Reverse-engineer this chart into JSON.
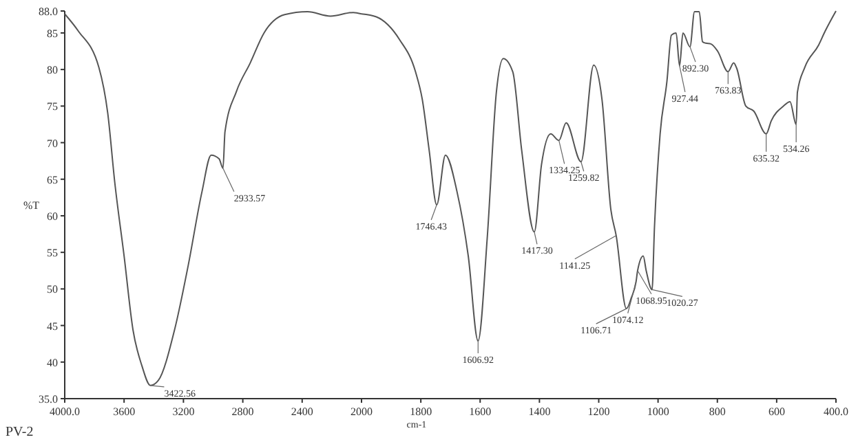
{
  "chart_data": [
    {
      "type": "line",
      "ylabel": "%T",
      "xlim": [
        4000,
        2000
      ],
      "ylim": [
        35,
        88
      ],
      "tick_labels": "xy",
      "xticks": [
        {
          "value": 4000,
          "label": "4000.0"
        },
        3600,
        3200,
        2800,
        2400
      ],
      "yticks": [
        {
          "value": 35,
          "label": "35.0"
        },
        40,
        45,
        50,
        55,
        60,
        65,
        70,
        75,
        80,
        85,
        {
          "value": 88,
          "label": "88.0"
        }
      ],
      "marker": "none",
      "line_style": "solid",
      "series": [
        {
          "color": "#555555",
          "x": [
            4000,
            3910,
            3770,
            3710,
            3663,
            3600,
            3540,
            3480,
            3422.56,
            3369,
            3260,
            3168,
            3075,
            3013,
            2960,
            2933.57,
            2920,
            2843,
            2750,
            2657,
            2518,
            2364,
            2209,
            2055,
            2000
          ],
          "values": [
            87.6,
            85.3,
            80.3,
            74,
            64.6,
            54.5,
            44.4,
            39.5,
            36.8,
            37.5,
            44.4,
            53.2,
            63.3,
            68.3,
            67.8,
            66.5,
            71.5,
            77,
            80.9,
            85,
            87.5,
            87.9,
            87.3,
            87.8,
            87.6
          ]
        }
      ],
      "annotations": [
        {
          "text": "3422.56",
          "x": 3422.56,
          "y": 36.8
        },
        {
          "text": "2933.57",
          "x": 2933.57,
          "y": 66.5
        },
        "PV-2"
      ]
    },
    {
      "type": "line",
      "xlabel": "cm-1",
      "xlim": [
        2000,
        400
      ],
      "ylim": [
        35,
        88
      ],
      "tick_labels": "x",
      "xticks": [
        2000,
        1800,
        1600,
        1400,
        1200,
        1000,
        800,
        600,
        {
          "value": 400,
          "label": "400.0"
        }
      ],
      "marker": "none",
      "line_style": "solid",
      "series": [
        {
          "color": "#555555",
          "x": [
            2000,
            1950,
            1872,
            1818,
            1795,
            1772,
            1746.43,
            1717,
            1678,
            1640,
            1606.92,
            1576,
            1545,
            1522,
            1490,
            1460,
            1417.3,
            1393,
            1362,
            1334.25,
            1310,
            1259.82,
            1217,
            1189,
            1159,
            1141.25,
            1106.71,
            1090,
            1074.12,
            1068.95,
            1050,
            1040,
            1020.27,
            1012,
            993,
            970,
            955,
            939,
            927.44,
            916,
            892.3,
            877,
            861,
            850,
            839,
            822,
            799,
            763.83,
            745,
            735,
            704,
            677,
            635.32,
            618,
            577,
            555,
            534.26,
            530,
            505,
            459,
            437,
            400
          ],
          "values": [
            87.6,
            87.2,
            84.1,
            79.7,
            75.9,
            69,
            61.5,
            68.3,
            63.3,
            54.5,
            42.9,
            57,
            77,
            81.5,
            79.7,
            69,
            57.8,
            67,
            71.2,
            70.3,
            72.7,
            67.4,
            80.6,
            75.9,
            60.8,
            57.3,
            47.3,
            48.8,
            51,
            52.5,
            54.5,
            52.5,
            49.9,
            58.5,
            71.2,
            78.4,
            84.7,
            85,
            80.5,
            85,
            83.1,
            87.9,
            87.9,
            83.8,
            83.6,
            83.5,
            82.5,
            79.7,
            80.9,
            80.2,
            75,
            74.3,
            71.2,
            73,
            75,
            75.6,
            72.5,
            76.9,
            80.3,
            83.3,
            85.2,
            88
          ]
        }
      ],
      "annotations": [
        {
          "text": "1746.43",
          "x": 1746.43,
          "y": 61.5
        },
        {
          "text": "1606.92",
          "x": 1606.92,
          "y": 42.9
        },
        {
          "text": "1417.30",
          "x": 1417.3,
          "y": 57.8
        },
        {
          "text": "1334.25",
          "x": 1334.25,
          "y": 70.3
        },
        {
          "text": "1259.82",
          "x": 1259.82,
          "y": 67.4
        },
        {
          "text": "1141.25",
          "x": 1141.25,
          "y": 57.3
        },
        {
          "text": "1106.71",
          "x": 1106.71,
          "y": 47.3
        },
        {
          "text": "1074.12",
          "x": 1074.12,
          "y": 51
        },
        {
          "text": "1068.95",
          "x": 1068.95,
          "y": 52.5
        },
        {
          "text": "1020.27",
          "x": 1020.27,
          "y": 49.9
        },
        {
          "text": "927.44",
          "x": 927.44,
          "y": 80.5
        },
        {
          "text": "892.30",
          "x": 892.3,
          "y": 83.1
        },
        {
          "text": "763.83",
          "x": 763.83,
          "y": 79.7
        },
        {
          "text": "635.32",
          "x": 635.32,
          "y": 71.2
        },
        {
          "text": "534.26",
          "x": 534.26,
          "y": 72.5
        }
      ]
    }
  ]
}
